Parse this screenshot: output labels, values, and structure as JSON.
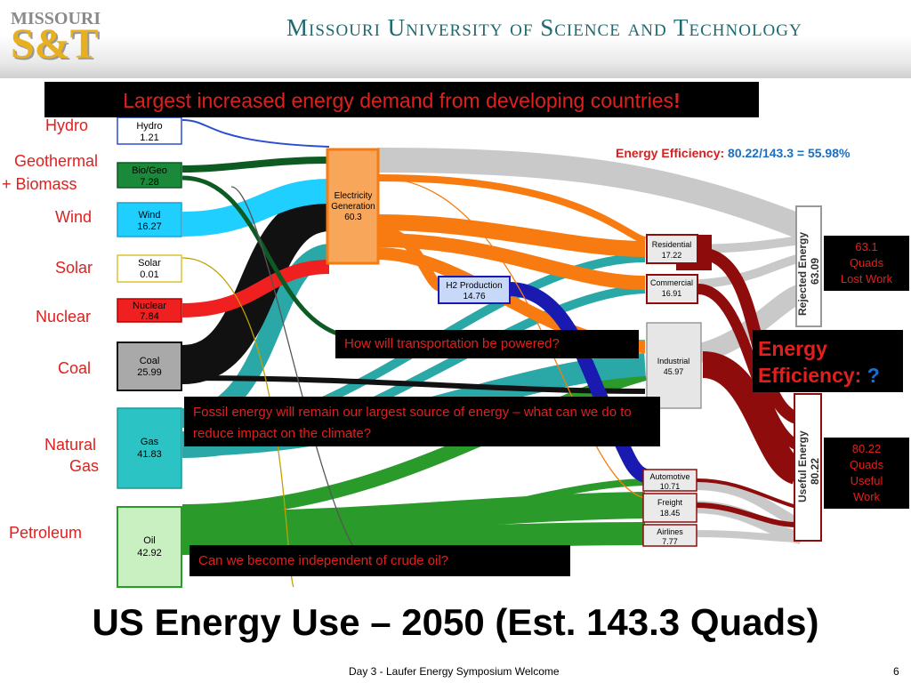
{
  "header": {
    "logo_top": "MISSOURI",
    "logo_main": "S&T",
    "university": "Missouri University of Science and Technology"
  },
  "banner": {
    "prefix": "Largest increased energy demand from developing countries",
    "suffix": "!"
  },
  "source_labels": {
    "hydro": "Hydro",
    "geothermal": "Geothermal",
    "biomass": "+ Biomass",
    "wind": "Wind",
    "solar": "Solar",
    "nuclear": "Nuclear",
    "coal": "Coal",
    "natural": "Natural",
    "gas": "Gas",
    "petroleum": "Petroleum"
  },
  "sources": [
    {
      "name": "Hydro",
      "value": "1.21",
      "color": "#2b4fd0"
    },
    {
      "name": "Bio/Geo",
      "value": "7.28",
      "color": "#0d6b2a"
    },
    {
      "name": "Wind",
      "value": "16.27",
      "color": "#1ecfff"
    },
    {
      "name": "Solar",
      "value": "0.01",
      "color": "#ffe060"
    },
    {
      "name": "Nuclear",
      "value": "7.84",
      "color": "#f02020"
    },
    {
      "name": "Coal",
      "value": "25.99",
      "color": "#111111"
    },
    {
      "name": "Gas",
      "value": "41.83",
      "color": "#2bc3c3"
    },
    {
      "name": "Oil",
      "value": "42.92",
      "color": "#2a9a2a"
    }
  ],
  "nodes": {
    "electricity_label_1": "Electricity",
    "electricity_label_2": "Generation",
    "electricity_value": "60.3",
    "h2_label": "H2 Production",
    "h2_value": "14.76",
    "residential_label": "Residential",
    "residential_value": "17.22",
    "commercial_label": "Commercial",
    "commercial_value": "16.91",
    "industrial_label": "Industrial",
    "industrial_value": "45.97",
    "automotive_label": "Automotive",
    "automotive_value": "10.71",
    "freight_label": "Freight",
    "freight_value": "18.45",
    "airlines_label": "Airlines",
    "airlines_value": "7.77",
    "rejected_label": "Rejected Energy",
    "rejected_value": "63.09",
    "useful_label": "Useful Energy",
    "useful_value": "80.22"
  },
  "efficiency_top": {
    "label": "Energy Efficiency:",
    "value": "80.22/143.3 = 55.98%"
  },
  "quads_lost": {
    "line1": "63.1",
    "line2": "Quads",
    "line3": "Lost Work"
  },
  "quads_useful": {
    "line1": "80.22",
    "line2": "Quads",
    "line3": "Useful",
    "line4": "Work"
  },
  "efficiency_box": {
    "line1": "Energy",
    "line2": "Efficiency:",
    "q": "?"
  },
  "callouts": {
    "transport": "How will transportation be powered?",
    "fossil": "Fossil energy will remain our largest source of energy – what can we do to reduce impact on the climate?",
    "oil": "Can we become independent of crude oil?"
  },
  "title": "US Energy Use – 2050 (Est. 143.3 Quads)",
  "footer": "Day 3 - Laufer Energy Symposium Welcome",
  "page_number": "6"
}
